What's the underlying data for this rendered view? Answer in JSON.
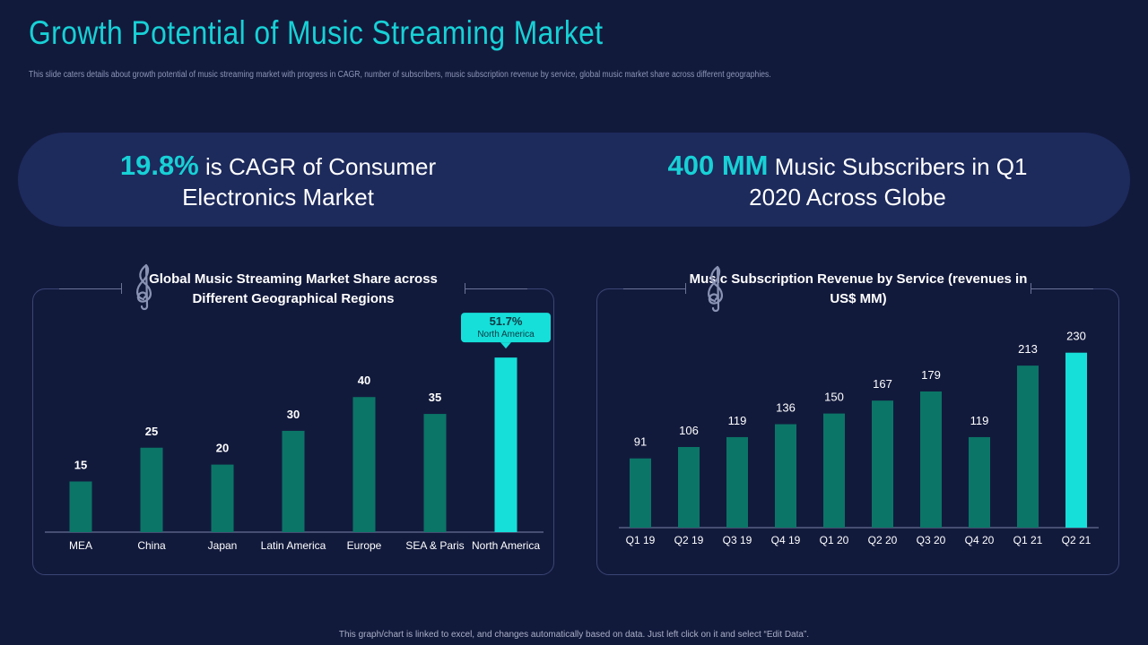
{
  "page": {
    "title": "Growth Potential of Music Streaming Market",
    "subtitle": "This slide caters details about growth potential of music streaming market with progress in CAGR, number of subscribers, music subscription revenue by service, global music market share across different geographies.",
    "footer": "This graph/chart is linked to excel, and changes automatically based on data. Just left click on it and select “Edit Data”."
  },
  "kpis": [
    {
      "value": "19.8%",
      "text1": " is CAGR of Consumer",
      "text2": "Electronics Market"
    },
    {
      "value": "400 MM",
      "text1": " Music Subscribers in Q1",
      "text2": "2020 Across Globe"
    }
  ],
  "colors": {
    "accent": "#17d1d6",
    "bar": "#0b7567",
    "highlight": "#16dfd9",
    "background": "#121a3c",
    "band": "#1d2a5c"
  },
  "icons": [
    "treble-clef-icon"
  ],
  "chart_data": [
    {
      "type": "bar",
      "title": "Global Music Streaming Market Share across Different Geographical Regions",
      "categories": [
        "MEA",
        "China",
        "Japan",
        "Latin America",
        "Europe",
        "SEA & Paris",
        "North America"
      ],
      "values": [
        15,
        25,
        20,
        30,
        40,
        35,
        51.7
      ],
      "value_labels": [
        "15",
        "25",
        "20",
        "30",
        "40",
        "35",
        ""
      ],
      "callout": {
        "value": "51.7%",
        "label": "North America"
      },
      "highlight_index": 6,
      "ylim": [
        0,
        52
      ],
      "grid": false
    },
    {
      "type": "bar",
      "title": "Music Subscription Revenue by Service (revenues in US$ MM)",
      "categories": [
        "Q1 19",
        "Q2 19",
        "Q3 19",
        "Q4 19",
        "Q1 20",
        "Q2 20",
        "Q3 20",
        "Q4 20",
        "Q1 21",
        "Q2 21"
      ],
      "values": [
        91,
        106,
        119,
        136,
        150,
        167,
        179,
        119,
        213,
        230
      ],
      "value_labels": [
        "91",
        "106",
        "119",
        "136",
        "150",
        "167",
        "179",
        "119",
        "213",
        "230"
      ],
      "highlight_index": 9,
      "ylim": [
        0,
        232
      ],
      "grid": false
    }
  ]
}
